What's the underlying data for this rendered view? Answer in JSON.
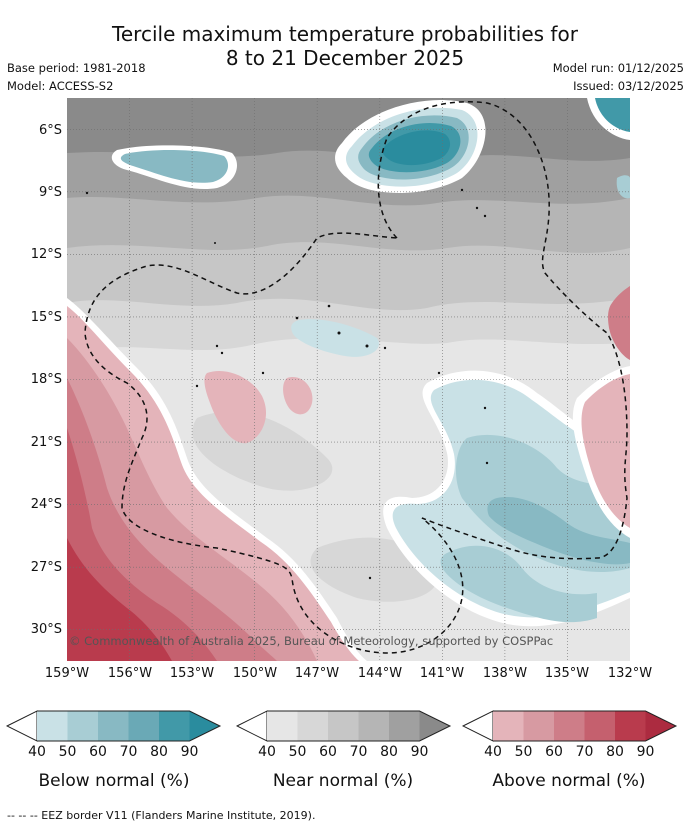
{
  "title": {
    "line1": "Tercile maximum temperature probabilities for",
    "line2": "8 to 21 December 2025"
  },
  "meta": {
    "base_period": "Base period: 1981-2018",
    "model": "Model: ACCESS-S2",
    "model_run": "Model run: 01/12/2025",
    "issued": "Issued: 03/12/2025"
  },
  "map": {
    "copyright": "© Commonwealth of Australia 2025, Bureau of Meteorology, supported by COSPPac",
    "lat_labels": [
      "6°S",
      "9°S",
      "12°S",
      "15°S",
      "18°S",
      "21°S",
      "24°S",
      "27°S",
      "30°S"
    ],
    "lon_labels": [
      "159°W",
      "156°W",
      "153°W",
      "150°W",
      "147°W",
      "144°W",
      "141°W",
      "138°W",
      "135°W",
      "132°W"
    ],
    "lat_range": [
      -31.5,
      -4.5
    ],
    "lon_range": [
      -159,
      -132
    ]
  },
  "legend": {
    "ticks": [
      "40",
      "50",
      "60",
      "70",
      "80",
      "90"
    ],
    "below": {
      "title": "Below normal (%)",
      "colors": [
        "#c9e1e6",
        "#a8cdd4",
        "#88b9c3",
        "#6aa9b6",
        "#4199a8",
        "#2a8c9e"
      ]
    },
    "near": {
      "title": "Near normal (%)",
      "colors": [
        "#e6e6e6",
        "#d7d7d7",
        "#c6c6c6",
        "#b5b5b5",
        "#a0a0a0",
        "#8a8a8a"
      ]
    },
    "above": {
      "title": "Above normal (%)",
      "colors": [
        "#e4b4ba",
        "#d79aa2",
        "#ce7d88",
        "#c5606e",
        "#b93b4d",
        "#ac2b40"
      ]
    }
  },
  "footer": "--  --  -- EEZ border V11 (Flanders Marine Institute, 2019)."
}
